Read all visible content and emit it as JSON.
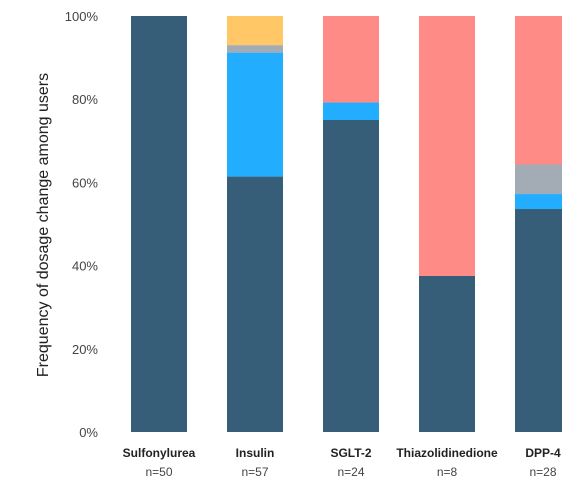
{
  "chart_data": {
    "type": "bar",
    "stacked": true,
    "title": "",
    "xlabel": "",
    "ylabel": "Frequency of dosage change among users",
    "ylim": [
      0,
      100
    ],
    "yticks": [
      "0%",
      "20%",
      "40%",
      "60%",
      "80%",
      "100%"
    ],
    "grid": false,
    "categories": [
      "Sulfonylurea",
      "Insulin",
      "SGLT-2",
      "Thiazolidinedione",
      "DPP-4"
    ],
    "category_sublabels": [
      "n=50",
      "n=57",
      "n=24",
      "n=8",
      "n=28"
    ],
    "series": [
      {
        "color": "#365e78",
        "values": [
          100,
          61.4,
          75.0,
          37.5,
          53.6
        ]
      },
      {
        "color": "#22adff",
        "values": [
          0,
          29.8,
          4.2,
          0,
          3.6
        ]
      },
      {
        "color": "#a3acb4",
        "values": [
          0,
          1.8,
          0,
          0,
          7.1
        ]
      },
      {
        "color": "#ff8b87",
        "values": [
          0,
          0,
          20.8,
          62.5,
          35.7
        ]
      },
      {
        "color": "#ffc766",
        "values": [
          0,
          7.0,
          0,
          0,
          0
        ]
      }
    ]
  }
}
